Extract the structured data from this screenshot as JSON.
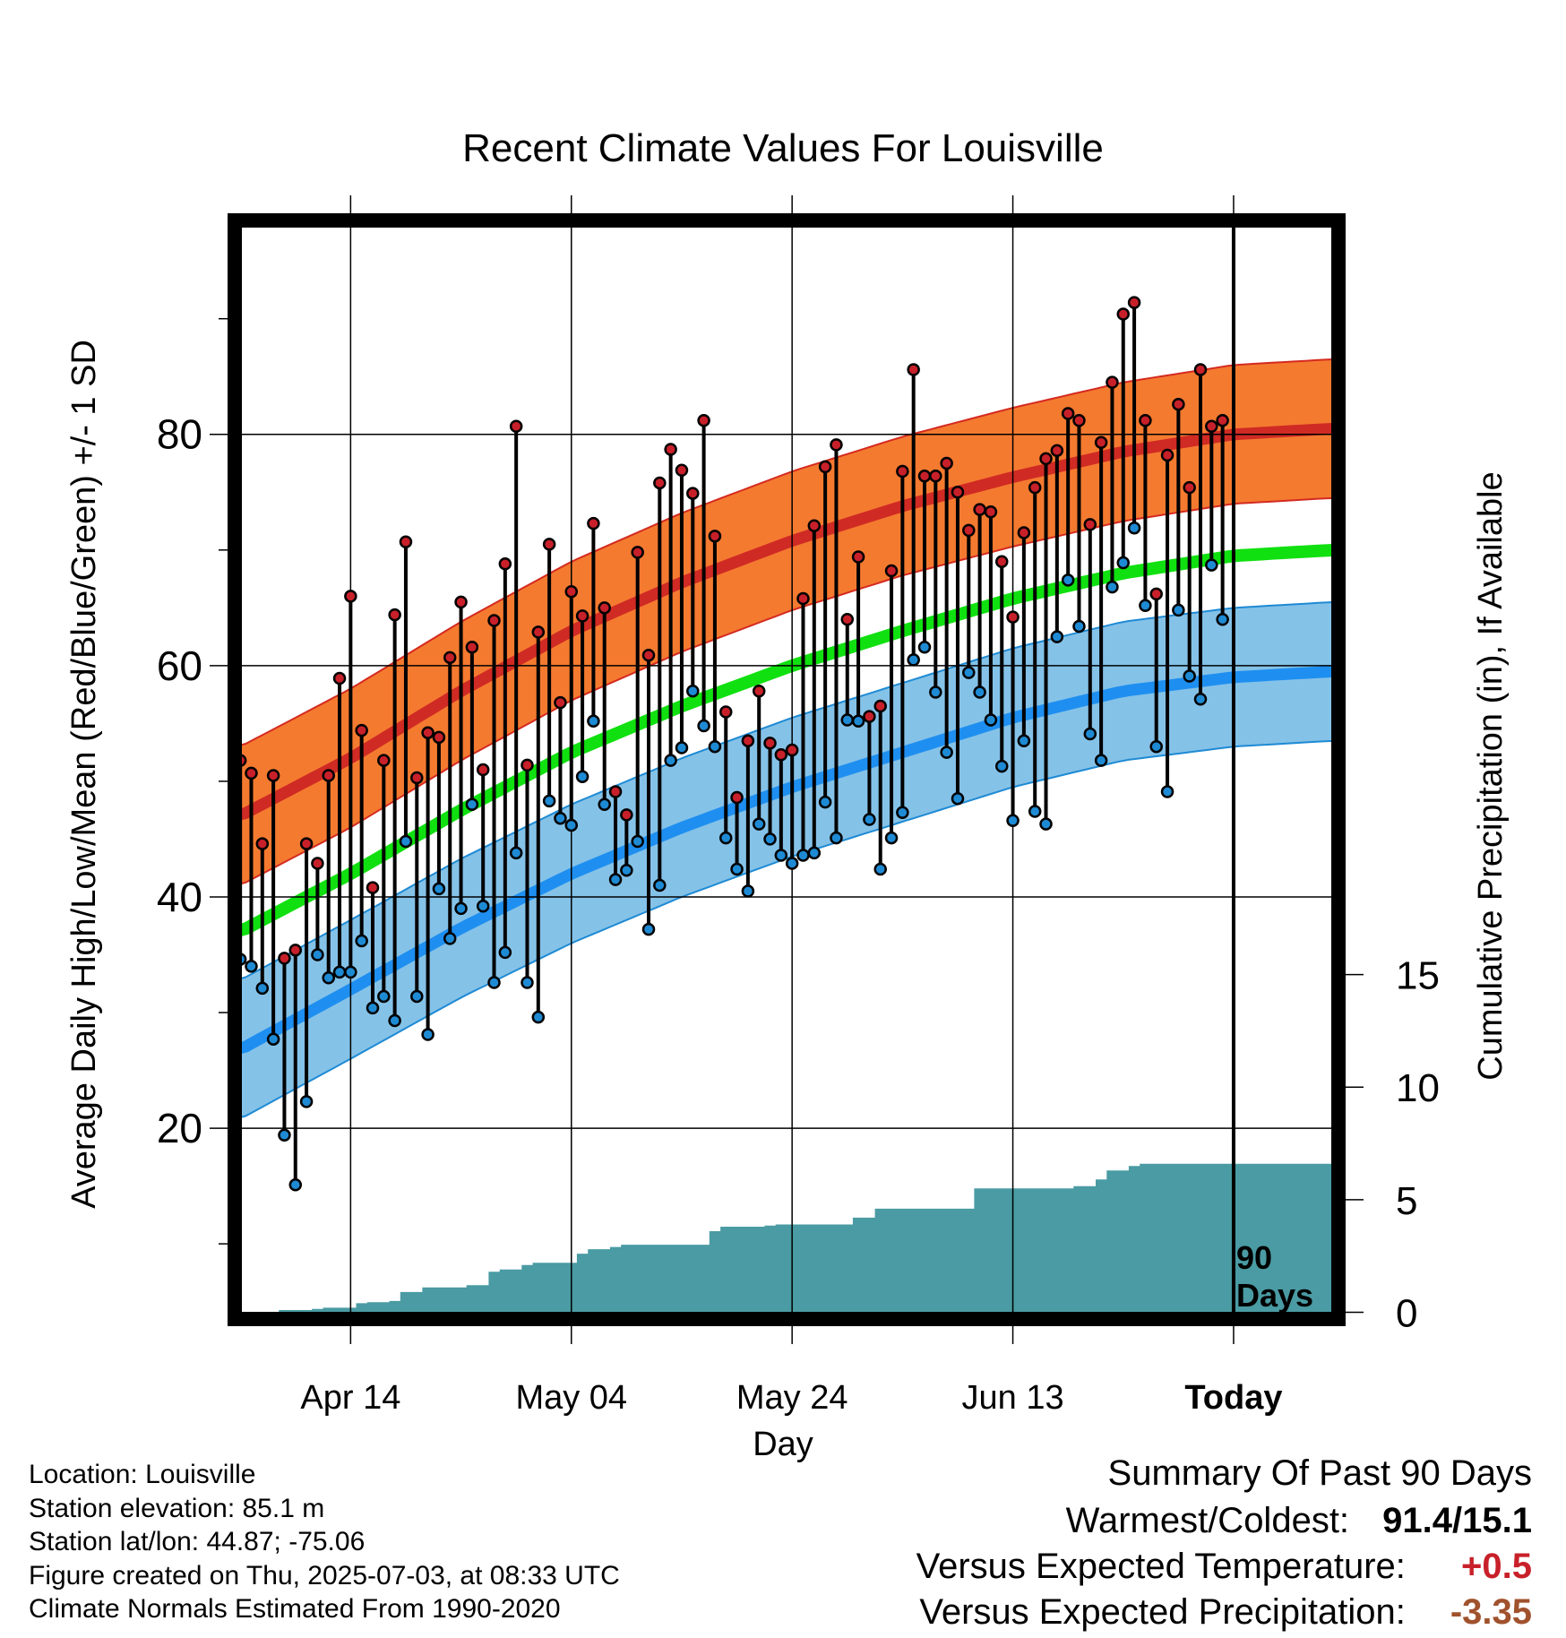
{
  "chart_data": {
    "type": "line",
    "title": "Recent Climate Values For Louisville",
    "xlabel": "Day",
    "ylabel": "Average Daily High/Low/Mean (Red/Blue/Green) +/- 1 SD",
    "y2label": "Cumulative Precipitation (in), If Available",
    "x_ticks": [
      "Apr 14",
      "May 04",
      "May 24",
      "Jun 13",
      "Today"
    ],
    "x_tick_days": [
      10,
      30,
      50,
      70,
      90
    ],
    "xlim": [
      -0.5,
      99.5
    ],
    "ylim": [
      3.5,
      98.5
    ],
    "y_ticks": [
      20,
      40,
      60,
      80
    ],
    "y_minor_ticks": [
      10,
      30,
      50,
      70,
      90
    ],
    "y2lim": [
      -0.3,
      48.5
    ],
    "y2_ticks": [
      0,
      5,
      10,
      15
    ],
    "today_label": [
      "90",
      "Days"
    ],
    "normals": {
      "days": [
        0,
        10,
        20,
        30,
        40,
        50,
        60,
        70,
        80,
        90,
        99
      ],
      "high_mean": [
        47.0,
        52.0,
        57.8,
        63.0,
        67.2,
        70.8,
        73.8,
        76.3,
        78.5,
        80.0,
        80.5
      ],
      "high_sd": 6.0,
      "low_mean": [
        26.8,
        32.0,
        37.3,
        42.0,
        46.0,
        49.5,
        52.5,
        55.5,
        57.8,
        59.0,
        59.5
      ],
      "low_sd": 6.0,
      "mean": [
        37.0,
        42.0,
        47.5,
        52.5,
        56.5,
        60.0,
        63.0,
        65.8,
        68.0,
        69.5,
        70.0
      ]
    },
    "series": [
      {
        "name": "High",
        "color": "#c8202a",
        "values": [
          51.8,
          50.7,
          44.6,
          50.5,
          34.7,
          35.4,
          44.6,
          42.9,
          50.5,
          58.9,
          66.0,
          54.4,
          40.8,
          51.8,
          64.4,
          70.7,
          50.3,
          54.2,
          53.8,
          60.7,
          65.5,
          61.6,
          51.0,
          63.9,
          68.8,
          80.7,
          51.4,
          62.9,
          70.5,
          56.8,
          66.4,
          64.3,
          72.3,
          65.0,
          49.1,
          47.1,
          69.8,
          60.9,
          75.8,
          78.7,
          76.9,
          74.9,
          81.2,
          71.2,
          56.0,
          48.6,
          53.5,
          57.8,
          53.3,
          52.3,
          52.7,
          65.8,
          72.1,
          77.2,
          79.1,
          64.0,
          69.4,
          55.6,
          56.5,
          68.2,
          76.8,
          85.6,
          76.4,
          76.4,
          77.5,
          75.0,
          71.7,
          73.5,
          73.3,
          69.0,
          64.2,
          71.5,
          75.4,
          77.9,
          78.6,
          81.8,
          81.2,
          72.2,
          79.3,
          84.5,
          90.4,
          91.4,
          81.2,
          66.2,
          78.2,
          82.6,
          75.4,
          85.6,
          80.7,
          81.2
        ]
      },
      {
        "name": "Low",
        "color": "#1e8ad4",
        "values": [
          34.6,
          34.0,
          32.1,
          27.7,
          19.4,
          15.1,
          22.3,
          35.0,
          33.0,
          33.5,
          33.5,
          36.2,
          30.4,
          31.4,
          29.3,
          44.8,
          31.4,
          28.1,
          40.7,
          36.4,
          39.0,
          48.0,
          39.2,
          32.6,
          35.2,
          43.8,
          32.6,
          29.6,
          48.3,
          46.8,
          46.2,
          50.4,
          55.2,
          48.0,
          41.5,
          42.3,
          44.8,
          37.2,
          41.0,
          51.8,
          52.9,
          57.8,
          54.8,
          53.0,
          45.1,
          42.4,
          40.5,
          46.3,
          45.0,
          43.6,
          42.9,
          43.6,
          43.8,
          48.2,
          45.1,
          55.3,
          55.2,
          46.7,
          42.4,
          45.1,
          47.3,
          60.5,
          61.6,
          57.7,
          52.5,
          48.5,
          59.4,
          57.7,
          55.3,
          51.3,
          46.6,
          53.5,
          47.4,
          46.3,
          62.5,
          67.4,
          63.4,
          54.1,
          51.8,
          66.8,
          68.9,
          71.9,
          65.2,
          53.0,
          49.1,
          64.8,
          59.1,
          57.1,
          68.7,
          64.0
        ]
      }
    ],
    "precip": {
      "name": "Cumulative Precipitation",
      "color": "#4a9ba3",
      "values": [
        0.0,
        0.0,
        0.0,
        0.0,
        0.1,
        0.1,
        0.1,
        0.15,
        0.2,
        0.2,
        0.2,
        0.4,
        0.45,
        0.45,
        0.5,
        0.9,
        0.9,
        1.1,
        1.1,
        1.1,
        1.1,
        1.2,
        1.2,
        1.8,
        1.9,
        1.9,
        2.1,
        2.2,
        2.2,
        2.2,
        2.2,
        2.6,
        2.8,
        2.8,
        2.9,
        3.0,
        3.0,
        3.0,
        3.0,
        3.0,
        3.0,
        3.0,
        3.0,
        3.6,
        3.8,
        3.8,
        3.8,
        3.8,
        3.85,
        3.9,
        3.9,
        3.9,
        3.9,
        3.9,
        3.9,
        3.9,
        4.2,
        4.2,
        4.6,
        4.6,
        4.6,
        4.6,
        4.6,
        4.6,
        4.6,
        4.6,
        4.6,
        5.5,
        5.5,
        5.5,
        5.5,
        5.5,
        5.5,
        5.5,
        5.5,
        5.5,
        5.6,
        5.6,
        5.9,
        6.3,
        6.3,
        6.5,
        6.6,
        6.6,
        6.6,
        6.6,
        6.6,
        6.6,
        6.6,
        6.6,
        6.6,
        6.6,
        6.6,
        6.6,
        6.6,
        6.6,
        6.6,
        6.6,
        6.6,
        6.6
      ]
    }
  },
  "metadata": {
    "location": "Location: Louisville",
    "elevation": "Station elevation: 85.1 m",
    "latlon": "Station lat/lon: 44.87; -75.06",
    "created": "Figure created on Thu, 2025-07-03, at 08:33 UTC",
    "normals": "Climate Normals Estimated From 1990-2020"
  },
  "summary": {
    "title": "Summary Of Past 90 Days",
    "warmest_coldest_label": "Warmest/Coldest:",
    "warmest_coldest_value": "91.4/15.1",
    "temp_label": "Versus Expected Temperature:",
    "temp_value": "+0.5",
    "temp_color": "#c8202a",
    "precip_label": "Versus Expected Precipitation:",
    "precip_value": "-3.35",
    "precip_color": "#a0522d"
  }
}
